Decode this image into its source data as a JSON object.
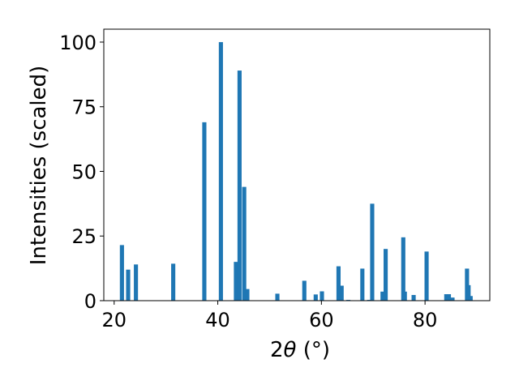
{
  "chart_data": {
    "type": "bar",
    "title": "",
    "xlabel": {
      "prefix": "2",
      "symbol": "θ",
      "suffix": " (°)"
    },
    "ylabel": "Intensities (scaled)",
    "xlim": [
      18,
      92.5
    ],
    "ylim": [
      0,
      105
    ],
    "xticks": [
      20,
      40,
      60,
      80
    ],
    "yticks": [
      0,
      25,
      50,
      75,
      100
    ],
    "grid": false,
    "bar_color": "#1f77b4",
    "bar_width": 0.8,
    "x": [
      21.5,
      22.7,
      24.2,
      31.4,
      37.4,
      40.6,
      43.5,
      44.2,
      45.1,
      45.7,
      51.5,
      56.7,
      58.9,
      60.1,
      63.3,
      63.9,
      65.2,
      67.9,
      69.2,
      69.8,
      71.8,
      72.4,
      75.8,
      76.1,
      77.8,
      80.3,
      84.1,
      84.6,
      85.3,
      88.1,
      88.4,
      88.8
    ],
    "values": [
      21.5,
      12,
      14,
      14.3,
      69,
      100,
      15,
      89,
      44,
      4.5,
      2.7,
      7.7,
      2.4,
      3.6,
      13.3,
      5.8,
      0.3,
      12.4,
      0.3,
      37.5,
      3.5,
      20,
      24.5,
      3.5,
      2.2,
      19,
      2.5,
      2.5,
      1.2,
      12.4,
      6,
      1.8
    ]
  }
}
